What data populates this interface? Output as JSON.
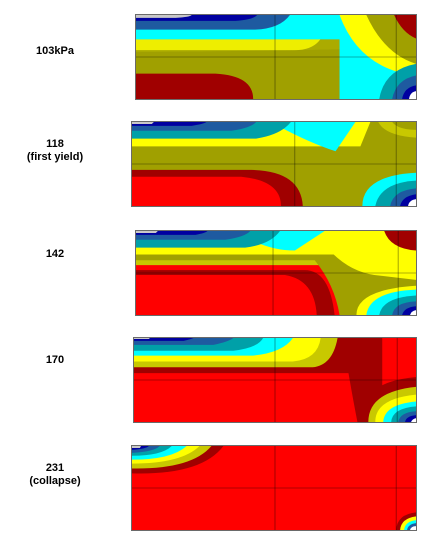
{
  "panels": [
    {
      "id": "p1",
      "label_lines": [
        "103kPa"
      ],
      "stage": 1
    },
    {
      "id": "p2",
      "label_lines": [
        "118",
        "(first yield)"
      ],
      "stage": 2
    },
    {
      "id": "p3",
      "label_lines": [
        "142"
      ],
      "stage": 3
    },
    {
      "id": "p4",
      "label_lines": [
        "170"
      ],
      "stage": 4
    },
    {
      "id": "p5",
      "label_lines": [
        "231",
        "(collapse)"
      ],
      "stage": 5
    }
  ],
  "colors": {
    "grey": "#c8c8c8",
    "navy": "#0000a0",
    "blue": "#1e5aa0",
    "teal": "#00a0a8",
    "cyan": "#00ffff",
    "yellow": "#ffff00",
    "olive_yellow": "#c8c800",
    "olive": "#a0a000",
    "dark_red": "#a00000",
    "red": "#ff0000",
    "white": "#ffffff"
  }
}
